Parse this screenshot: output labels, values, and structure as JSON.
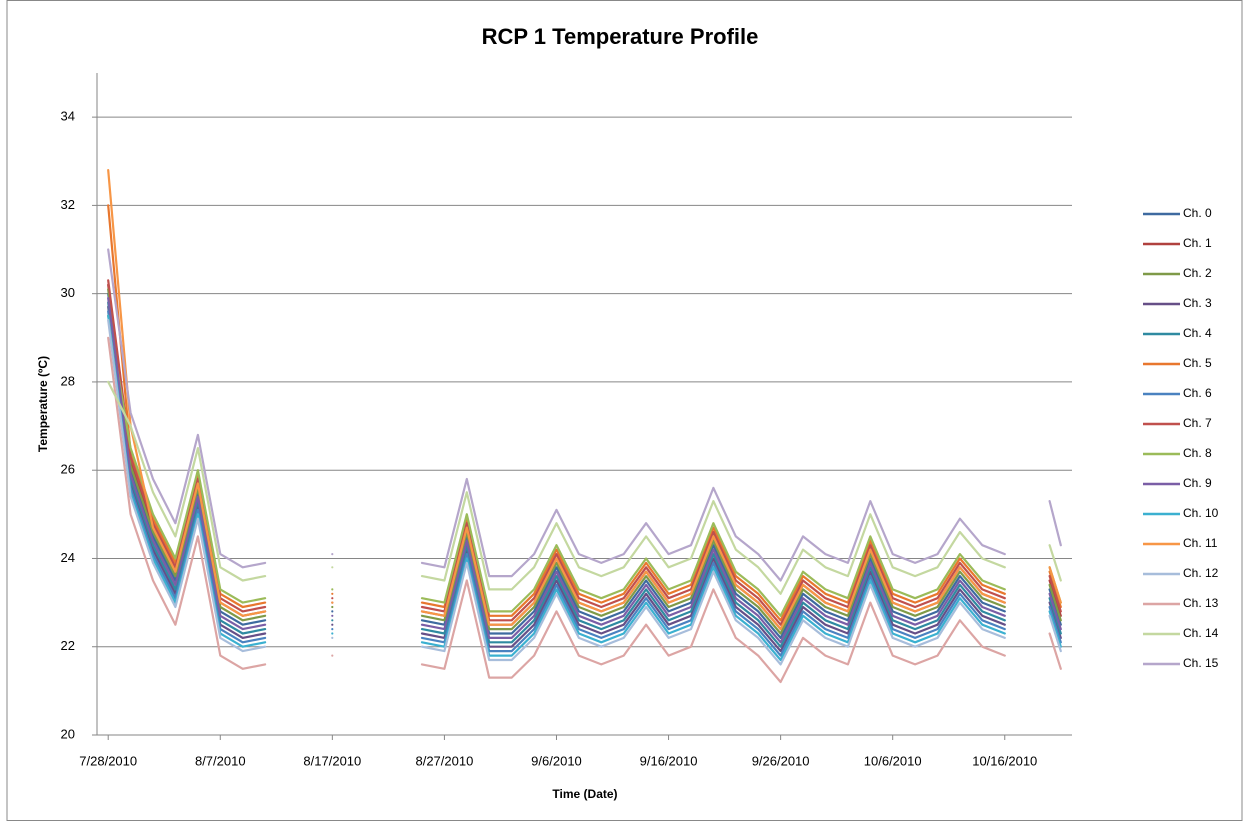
{
  "chart_data": {
    "type": "line",
    "title": "RCP 1 Temperature Profile",
    "x_label": "Time (Date)",
    "y_label": "Temperature (ºC)",
    "x": [
      "7/28/2010",
      "7/30/2010",
      "8/1/2010",
      "8/3/2010",
      "8/5/2010",
      "8/7/2010",
      "8/9/2010",
      "8/11/2010",
      "8/13/2010",
      "8/15/2010",
      "8/17/2010",
      "8/19/2010",
      "8/21/2010",
      "8/23/2010",
      "8/25/2010",
      "8/27/2010",
      "8/29/2010",
      "8/31/2010",
      "9/2/2010",
      "9/4/2010",
      "9/6/2010",
      "9/8/2010",
      "9/10/2010",
      "9/12/2010",
      "9/14/2010",
      "9/16/2010",
      "9/18/2010",
      "9/20/2010",
      "9/22/2010",
      "9/24/2010",
      "9/26/2010",
      "9/28/2010",
      "9/30/2010",
      "10/2/2010",
      "10/4/2010",
      "10/6/2010",
      "10/8/2010",
      "10/10/2010",
      "10/12/2010",
      "10/14/2010",
      "10/16/2010",
      "10/18/2010",
      "10/20/2010",
      "10/21/2010"
    ],
    "xlim": [
      "7/27/2010",
      "10/22/2010"
    ],
    "xticks": [
      "7/28/2010",
      "8/7/2010",
      "8/17/2010",
      "8/27/2010",
      "9/6/2010",
      "9/16/2010",
      "9/26/2010",
      "10/6/2010",
      "10/16/2010"
    ],
    "ylim": [
      20,
      35
    ],
    "yticks": [
      20,
      22,
      24,
      26,
      28,
      30,
      32,
      34
    ],
    "grid": true,
    "legend": "right",
    "series": [
      {
        "name": "Ch. 0",
        "color": "#3e6aa0",
        "values": [
          30,
          26,
          24.5,
          23.5,
          25.5,
          22.8,
          22.5,
          22.6,
          null,
          null,
          22.8,
          null,
          null,
          null,
          22.6,
          22.5,
          24.5,
          22.3,
          22.3,
          22.8,
          23.8,
          22.8,
          22.6,
          22.8,
          23.5,
          22.8,
          23,
          24.3,
          23.2,
          22.8,
          22.2,
          23.2,
          22.8,
          22.6,
          24,
          22.8,
          22.6,
          22.8,
          23.6,
          23,
          22.8,
          null,
          23.3,
          22.5
        ]
      },
      {
        "name": "Ch. 1",
        "color": "#b0413e",
        "values": [
          30.2,
          26.2,
          24.7,
          23.7,
          25.7,
          23,
          22.7,
          22.8,
          null,
          null,
          23,
          null,
          null,
          null,
          22.8,
          22.7,
          24.7,
          22.5,
          22.5,
          23,
          24,
          23,
          22.8,
          23,
          23.7,
          23,
          23.2,
          24.5,
          23.4,
          23,
          22.4,
          23.4,
          23,
          22.8,
          24.2,
          23,
          22.8,
          23,
          23.8,
          23.2,
          23,
          null,
          23.5,
          22.7
        ]
      },
      {
        "name": "Ch. 2",
        "color": "#7f9a48",
        "values": [
          30.1,
          26.1,
          24.6,
          23.6,
          25.6,
          22.9,
          22.6,
          22.7,
          null,
          null,
          22.9,
          null,
          null,
          null,
          22.7,
          22.6,
          24.6,
          22.4,
          22.4,
          22.9,
          23.9,
          22.9,
          22.7,
          22.9,
          23.6,
          22.9,
          23.1,
          24.4,
          23.3,
          22.9,
          22.3,
          23.3,
          22.9,
          22.7,
          24.1,
          22.9,
          22.7,
          22.9,
          23.7,
          23.1,
          22.9,
          null,
          23.4,
          22.6
        ]
      },
      {
        "name": "Ch. 3",
        "color": "#664f87",
        "values": [
          29.7,
          25.7,
          24.2,
          23.2,
          25.2,
          22.5,
          22.2,
          22.3,
          null,
          null,
          22.5,
          null,
          null,
          null,
          22.3,
          22.2,
          24.2,
          22,
          22,
          22.5,
          23.5,
          22.5,
          22.3,
          22.5,
          23.2,
          22.5,
          22.7,
          24,
          22.9,
          22.5,
          21.9,
          22.9,
          22.5,
          22.3,
          23.7,
          22.5,
          22.3,
          22.5,
          23.3,
          22.7,
          22.5,
          null,
          23,
          22.2
        ]
      },
      {
        "name": "Ch. 4",
        "color": "#2f8aa1",
        "values": [
          29.8,
          25.8,
          24.3,
          23.3,
          25.3,
          22.6,
          22.3,
          22.4,
          null,
          null,
          22.6,
          null,
          null,
          null,
          22.4,
          22.3,
          24.3,
          22.1,
          22.1,
          22.6,
          23.6,
          22.6,
          22.4,
          22.6,
          23.3,
          22.6,
          22.8,
          24.1,
          23,
          22.6,
          22,
          23,
          22.6,
          22.4,
          23.8,
          22.6,
          22.4,
          22.6,
          23.4,
          22.8,
          22.6,
          null,
          23.1,
          22.3
        ]
      },
      {
        "name": "Ch. 5",
        "color": "#e8772e",
        "values": [
          32,
          26.4,
          24.9,
          23.9,
          25.9,
          23.2,
          22.9,
          23,
          null,
          null,
          23.2,
          null,
          null,
          null,
          23,
          22.9,
          24.9,
          22.7,
          22.7,
          23.2,
          24.2,
          23.2,
          23,
          23.2,
          23.9,
          23.2,
          23.4,
          24.7,
          23.6,
          23.2,
          22.6,
          23.6,
          23.2,
          23,
          24.4,
          23.2,
          23,
          23.2,
          24,
          23.4,
          23.2,
          null,
          23.7,
          22.9
        ]
      },
      {
        "name": "Ch. 6",
        "color": "#4a82c0",
        "values": [
          29.6,
          25.6,
          24.1,
          23.1,
          25.1,
          22.4,
          22.1,
          22.2,
          null,
          null,
          22.4,
          null,
          null,
          null,
          22.2,
          22.1,
          24.1,
          21.9,
          21.9,
          22.4,
          23.4,
          22.4,
          22.2,
          22.4,
          23.1,
          22.4,
          22.6,
          23.9,
          22.8,
          22.4,
          21.8,
          22.8,
          22.4,
          22.2,
          23.6,
          22.4,
          22.2,
          22.4,
          23.2,
          22.6,
          22.4,
          null,
          22.9,
          22.1
        ]
      },
      {
        "name": "Ch. 7",
        "color": "#c0504d",
        "values": [
          30.3,
          26.3,
          24.8,
          23.8,
          25.8,
          23.1,
          22.8,
          22.9,
          null,
          null,
          23.1,
          null,
          null,
          null,
          22.9,
          22.8,
          24.8,
          22.6,
          22.6,
          23.1,
          24.1,
          23.1,
          22.9,
          23.1,
          23.8,
          23.1,
          23.3,
          24.6,
          23.5,
          23.1,
          22.5,
          23.5,
          23.1,
          22.9,
          24.3,
          23.1,
          22.9,
          23.1,
          23.9,
          23.3,
          23.1,
          null,
          23.6,
          22.8
        ]
      },
      {
        "name": "Ch. 8",
        "color": "#9bbb59",
        "values": [
          29.5,
          26.5,
          25,
          24,
          26,
          23.3,
          23,
          23.1,
          null,
          null,
          23.3,
          null,
          null,
          null,
          23.1,
          23,
          25,
          22.8,
          22.8,
          23.3,
          24.3,
          23.3,
          23.1,
          23.3,
          24,
          23.3,
          23.5,
          24.8,
          23.7,
          23.3,
          22.7,
          23.7,
          23.3,
          23.1,
          24.5,
          23.3,
          23.1,
          23.3,
          24.1,
          23.5,
          23.3,
          null,
          23.8,
          23
        ]
      },
      {
        "name": "Ch. 9",
        "color": "#7a5ea6",
        "values": [
          29.9,
          25.9,
          24.4,
          23.4,
          25.4,
          22.7,
          22.4,
          22.5,
          null,
          null,
          22.7,
          null,
          null,
          null,
          22.5,
          22.4,
          24.4,
          22.2,
          22.2,
          22.7,
          23.7,
          22.7,
          22.5,
          22.7,
          23.4,
          22.7,
          22.9,
          24.2,
          23.1,
          22.7,
          22.1,
          23.1,
          22.7,
          22.5,
          23.9,
          22.7,
          22.5,
          22.7,
          23.5,
          22.9,
          22.7,
          null,
          23.2,
          22.4
        ]
      },
      {
        "name": "Ch. 10",
        "color": "#3bb0d0",
        "values": [
          29.5,
          25.5,
          24,
          23,
          25,
          22.3,
          22,
          22.1,
          null,
          null,
          22.3,
          null,
          null,
          null,
          22.1,
          22,
          24,
          21.8,
          21.8,
          22.3,
          23.3,
          22.3,
          22.1,
          22.3,
          23,
          22.3,
          22.5,
          23.8,
          22.7,
          22.3,
          21.7,
          22.7,
          22.3,
          22.1,
          23.5,
          22.3,
          22.1,
          22.3,
          23.1,
          22.5,
          22.3,
          null,
          22.8,
          22
        ]
      },
      {
        "name": "Ch. 11",
        "color": "#f79646",
        "values": [
          32.8,
          27,
          24.7,
          23.7,
          25.7,
          23,
          22.7,
          22.8,
          null,
          null,
          23,
          null,
          null,
          null,
          22.8,
          22.7,
          24.7,
          22.5,
          22.5,
          23,
          24,
          23,
          22.8,
          23,
          23.7,
          23,
          23.2,
          24.5,
          23.4,
          23,
          22.4,
          23.4,
          23,
          22.8,
          24.2,
          23,
          22.8,
          23,
          23.8,
          23.2,
          23,
          null,
          23.8,
          23
        ]
      },
      {
        "name": "Ch. 12",
        "color": "#a7bddb",
        "values": [
          29.4,
          25.4,
          23.9,
          22.9,
          24.9,
          22.2,
          21.9,
          22,
          null,
          null,
          22.2,
          null,
          null,
          null,
          22,
          21.9,
          23.9,
          21.7,
          21.7,
          22.2,
          23.2,
          22.2,
          22,
          22.2,
          22.9,
          22.2,
          22.4,
          23.7,
          22.6,
          22.2,
          21.6,
          22.6,
          22.2,
          22,
          23.4,
          22.2,
          22,
          22.2,
          23,
          22.4,
          22.2,
          null,
          22.7,
          21.9
        ]
      },
      {
        "name": "Ch. 13",
        "color": "#dca5a4",
        "values": [
          29,
          25,
          23.5,
          22.5,
          24.5,
          21.8,
          21.5,
          21.6,
          null,
          null,
          21.8,
          null,
          null,
          null,
          21.6,
          21.5,
          23.5,
          21.3,
          21.3,
          21.8,
          22.8,
          21.8,
          21.6,
          21.8,
          22.5,
          21.8,
          22,
          23.3,
          22.2,
          21.8,
          21.2,
          22.2,
          21.8,
          21.6,
          23,
          21.8,
          21.6,
          21.8,
          22.6,
          22,
          21.8,
          null,
          22.3,
          21.5
        ]
      },
      {
        "name": "Ch. 14",
        "color": "#c4d8a0",
        "values": [
          28,
          27,
          25.5,
          24.5,
          26.5,
          23.8,
          23.5,
          23.6,
          null,
          null,
          23.8,
          null,
          null,
          null,
          23.6,
          23.5,
          25.5,
          23.3,
          23.3,
          23.8,
          24.8,
          23.8,
          23.6,
          23.8,
          24.5,
          23.8,
          24,
          25.3,
          24.2,
          23.8,
          23.2,
          24.2,
          23.8,
          23.6,
          25,
          23.8,
          23.6,
          23.8,
          24.6,
          24,
          23.8,
          null,
          24.3,
          23.5
        ]
      },
      {
        "name": "Ch. 15",
        "color": "#b5a6cb",
        "values": [
          31,
          27.3,
          25.8,
          24.8,
          26.8,
          24.1,
          23.8,
          23.9,
          null,
          null,
          24.1,
          null,
          null,
          null,
          23.9,
          23.8,
          25.8,
          23.6,
          23.6,
          24.1,
          25.1,
          24.1,
          23.9,
          24.1,
          24.8,
          24.1,
          24.3,
          25.6,
          24.5,
          24.1,
          23.5,
          24.5,
          24.1,
          23.9,
          25.3,
          24.1,
          23.9,
          24.1,
          24.9,
          24.3,
          24.1,
          null,
          25.3,
          24.3
        ]
      }
    ]
  }
}
